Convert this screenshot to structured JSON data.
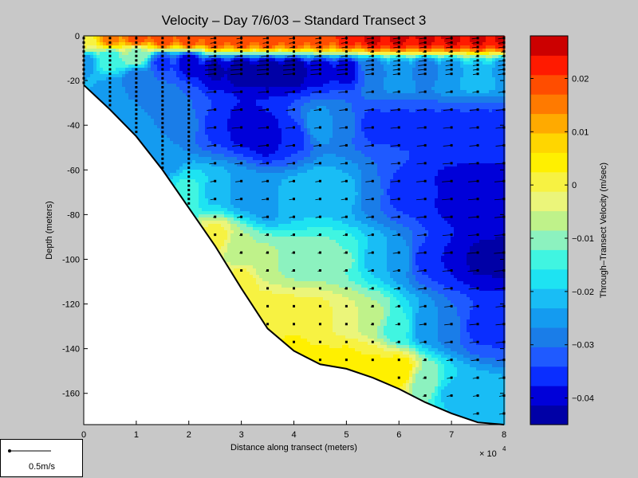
{
  "chart_data": {
    "type": "heatmap",
    "title": "Velocity – Day 7/6/03 – Standard Transect 3",
    "xlabel": "Distance along transect (meters)",
    "ylabel": "Depth (meters)",
    "x_multiplier": "× 10",
    "x_multiplier_exp": "4",
    "xlim": [
      0,
      80000
    ],
    "ylim": [
      -174,
      0
    ],
    "x_ticks": [
      0,
      1,
      2,
      3,
      4,
      5,
      6,
      7,
      8
    ],
    "y_ticks": [
      0,
      -20,
      -40,
      -60,
      -80,
      -100,
      -120,
      -140,
      -160
    ],
    "colorbar": {
      "label": "Through–Transect Velocity (m/sec)",
      "range": [
        -0.045,
        0.028
      ],
      "ticks": [
        0.02,
        0.01,
        0,
        -0.01,
        -0.02,
        -0.03,
        -0.04
      ],
      "tick_labels": [
        "0.02",
        "0.01",
        "0",
        "−0.01",
        "−0.02",
        "−0.03",
        "−0.04"
      ],
      "colors": [
        "#0000a6",
        "#0000d9",
        "#0a2eff",
        "#1f5aff",
        "#1a7de8",
        "#149bf0",
        "#19bdf5",
        "#1ee3f2",
        "#40f5e1",
        "#8cf2bf",
        "#bff28a",
        "#ebf57a",
        "#f7f242",
        "#fff000",
        "#ffd600",
        "#ffaa00",
        "#ff7a00",
        "#ff4d00",
        "#ff1a00",
        "#cc0000"
      ]
    },
    "bottom_profile": [
      {
        "x": 0,
        "depth": -22
      },
      {
        "x": 5000,
        "depth": -33
      },
      {
        "x": 10000,
        "depth": -45
      },
      {
        "x": 15000,
        "depth": -60
      },
      {
        "x": 20000,
        "depth": -77
      },
      {
        "x": 25000,
        "depth": -94
      },
      {
        "x": 30000,
        "depth": -113
      },
      {
        "x": 35000,
        "depth": -131
      },
      {
        "x": 40000,
        "depth": -141
      },
      {
        "x": 45000,
        "depth": -147
      },
      {
        "x": 50000,
        "depth": -149
      },
      {
        "x": 55000,
        "depth": -153
      },
      {
        "x": 60000,
        "depth": -158
      },
      {
        "x": 65000,
        "depth": -164
      },
      {
        "x": 70000,
        "depth": -169
      },
      {
        "x": 75000,
        "depth": -173
      },
      {
        "x": 80000,
        "depth": -174
      }
    ],
    "velocity_anchors": [
      {
        "x": 0,
        "depth": -2,
        "v": 0.0
      },
      {
        "x": 0,
        "depth": -12,
        "v": -0.025
      },
      {
        "x": 5000,
        "depth": -1,
        "v": 0.015
      },
      {
        "x": 5000,
        "depth": -10,
        "v": -0.015
      },
      {
        "x": 5000,
        "depth": -25,
        "v": -0.025
      },
      {
        "x": 10000,
        "depth": -1,
        "v": 0.02
      },
      {
        "x": 10000,
        "depth": -8,
        "v": -0.01
      },
      {
        "x": 10000,
        "depth": -20,
        "v": -0.03
      },
      {
        "x": 10000,
        "depth": -40,
        "v": -0.025
      },
      {
        "x": 15000,
        "depth": -1,
        "v": 0.02
      },
      {
        "x": 15000,
        "depth": -12,
        "v": -0.035
      },
      {
        "x": 15000,
        "depth": -30,
        "v": -0.03
      },
      {
        "x": 15000,
        "depth": -55,
        "v": -0.025
      },
      {
        "x": 20000,
        "depth": -1,
        "v": 0.02
      },
      {
        "x": 20000,
        "depth": -12,
        "v": -0.04
      },
      {
        "x": 20000,
        "depth": -40,
        "v": -0.03
      },
      {
        "x": 20000,
        "depth": -70,
        "v": -0.015
      },
      {
        "x": 25000,
        "depth": -1,
        "v": 0.02
      },
      {
        "x": 25000,
        "depth": -15,
        "v": -0.042
      },
      {
        "x": 25000,
        "depth": -40,
        "v": -0.035
      },
      {
        "x": 25000,
        "depth": -70,
        "v": -0.02
      },
      {
        "x": 25000,
        "depth": -90,
        "v": 0.0
      },
      {
        "x": 30000,
        "depth": -1,
        "v": 0.02
      },
      {
        "x": 30000,
        "depth": -15,
        "v": -0.045
      },
      {
        "x": 30000,
        "depth": -40,
        "v": -0.04
      },
      {
        "x": 30000,
        "depth": -70,
        "v": -0.025
      },
      {
        "x": 30000,
        "depth": -95,
        "v": -0.008
      },
      {
        "x": 30000,
        "depth": -110,
        "v": 0.0
      },
      {
        "x": 35000,
        "depth": -1,
        "v": 0.02
      },
      {
        "x": 35000,
        "depth": -15,
        "v": -0.045
      },
      {
        "x": 35000,
        "depth": -45,
        "v": -0.04
      },
      {
        "x": 35000,
        "depth": -75,
        "v": -0.025
      },
      {
        "x": 35000,
        "depth": -100,
        "v": -0.008
      },
      {
        "x": 35000,
        "depth": -125,
        "v": 0.002
      },
      {
        "x": 40000,
        "depth": -1,
        "v": 0.02
      },
      {
        "x": 40000,
        "depth": -15,
        "v": -0.045
      },
      {
        "x": 40000,
        "depth": -45,
        "v": -0.035
      },
      {
        "x": 40000,
        "depth": -75,
        "v": -0.02
      },
      {
        "x": 40000,
        "depth": -100,
        "v": -0.01
      },
      {
        "x": 40000,
        "depth": -125,
        "v": 0.0
      },
      {
        "x": 40000,
        "depth": -140,
        "v": 0.003
      },
      {
        "x": 45000,
        "depth": -1,
        "v": 0.02
      },
      {
        "x": 45000,
        "depth": -15,
        "v": -0.04
      },
      {
        "x": 45000,
        "depth": -40,
        "v": -0.025
      },
      {
        "x": 45000,
        "depth": -70,
        "v": -0.02
      },
      {
        "x": 45000,
        "depth": -100,
        "v": -0.01
      },
      {
        "x": 45000,
        "depth": -125,
        "v": 0.0
      },
      {
        "x": 45000,
        "depth": -145,
        "v": 0.003
      },
      {
        "x": 50000,
        "depth": -1,
        "v": 0.022
      },
      {
        "x": 50000,
        "depth": -15,
        "v": -0.04
      },
      {
        "x": 50000,
        "depth": -40,
        "v": -0.03
      },
      {
        "x": 50000,
        "depth": -70,
        "v": -0.022
      },
      {
        "x": 50000,
        "depth": -100,
        "v": -0.012
      },
      {
        "x": 50000,
        "depth": -125,
        "v": -0.004
      },
      {
        "x": 50000,
        "depth": -145,
        "v": 0.003
      },
      {
        "x": 55000,
        "depth": -1,
        "v": 0.025
      },
      {
        "x": 55000,
        "depth": -15,
        "v": -0.03
      },
      {
        "x": 55000,
        "depth": -40,
        "v": -0.035
      },
      {
        "x": 55000,
        "depth": -70,
        "v": -0.03
      },
      {
        "x": 55000,
        "depth": -100,
        "v": -0.02
      },
      {
        "x": 55000,
        "depth": -125,
        "v": -0.008
      },
      {
        "x": 55000,
        "depth": -148,
        "v": 0.003
      },
      {
        "x": 60000,
        "depth": -1,
        "v": 0.025
      },
      {
        "x": 60000,
        "depth": -15,
        "v": -0.025
      },
      {
        "x": 60000,
        "depth": -40,
        "v": -0.035
      },
      {
        "x": 60000,
        "depth": -70,
        "v": -0.035
      },
      {
        "x": 60000,
        "depth": -100,
        "v": -0.025
      },
      {
        "x": 60000,
        "depth": -130,
        "v": -0.015
      },
      {
        "x": 60000,
        "depth": -150,
        "v": 0.005
      },
      {
        "x": 65000,
        "depth": -1,
        "v": 0.025
      },
      {
        "x": 65000,
        "depth": -15,
        "v": -0.03
      },
      {
        "x": 65000,
        "depth": -40,
        "v": -0.035
      },
      {
        "x": 65000,
        "depth": -70,
        "v": -0.037
      },
      {
        "x": 65000,
        "depth": -100,
        "v": -0.035
      },
      {
        "x": 65000,
        "depth": -130,
        "v": -0.025
      },
      {
        "x": 65000,
        "depth": -155,
        "v": -0.01
      },
      {
        "x": 70000,
        "depth": -1,
        "v": 0.025
      },
      {
        "x": 70000,
        "depth": -15,
        "v": -0.025
      },
      {
        "x": 70000,
        "depth": -40,
        "v": -0.035
      },
      {
        "x": 70000,
        "depth": -70,
        "v": -0.04
      },
      {
        "x": 70000,
        "depth": -100,
        "v": -0.038
      },
      {
        "x": 70000,
        "depth": -130,
        "v": -0.03
      },
      {
        "x": 70000,
        "depth": -160,
        "v": -0.02
      },
      {
        "x": 75000,
        "depth": -1,
        "v": 0.025
      },
      {
        "x": 75000,
        "depth": -15,
        "v": -0.02
      },
      {
        "x": 75000,
        "depth": -40,
        "v": -0.035
      },
      {
        "x": 75000,
        "depth": -70,
        "v": -0.04
      },
      {
        "x": 75000,
        "depth": -100,
        "v": -0.042
      },
      {
        "x": 75000,
        "depth": -130,
        "v": -0.035
      },
      {
        "x": 75000,
        "depth": -165,
        "v": -0.02
      },
      {
        "x": 80000,
        "depth": -1,
        "v": 0.025
      },
      {
        "x": 80000,
        "depth": -15,
        "v": -0.025
      },
      {
        "x": 80000,
        "depth": -40,
        "v": -0.035
      },
      {
        "x": 80000,
        "depth": -70,
        "v": -0.04
      },
      {
        "x": 80000,
        "depth": -100,
        "v": -0.042
      },
      {
        "x": 80000,
        "depth": -130,
        "v": -0.035
      },
      {
        "x": 80000,
        "depth": -170,
        "v": -0.02
      }
    ],
    "sample_columns": [
      0,
      5000,
      10000,
      15000,
      20000,
      25000,
      30000,
      35000,
      40000,
      45000,
      50000,
      55000,
      60000,
      65000,
      70000,
      75000,
      80000
    ]
  },
  "scale_bar": {
    "label": "0.5m/s"
  }
}
